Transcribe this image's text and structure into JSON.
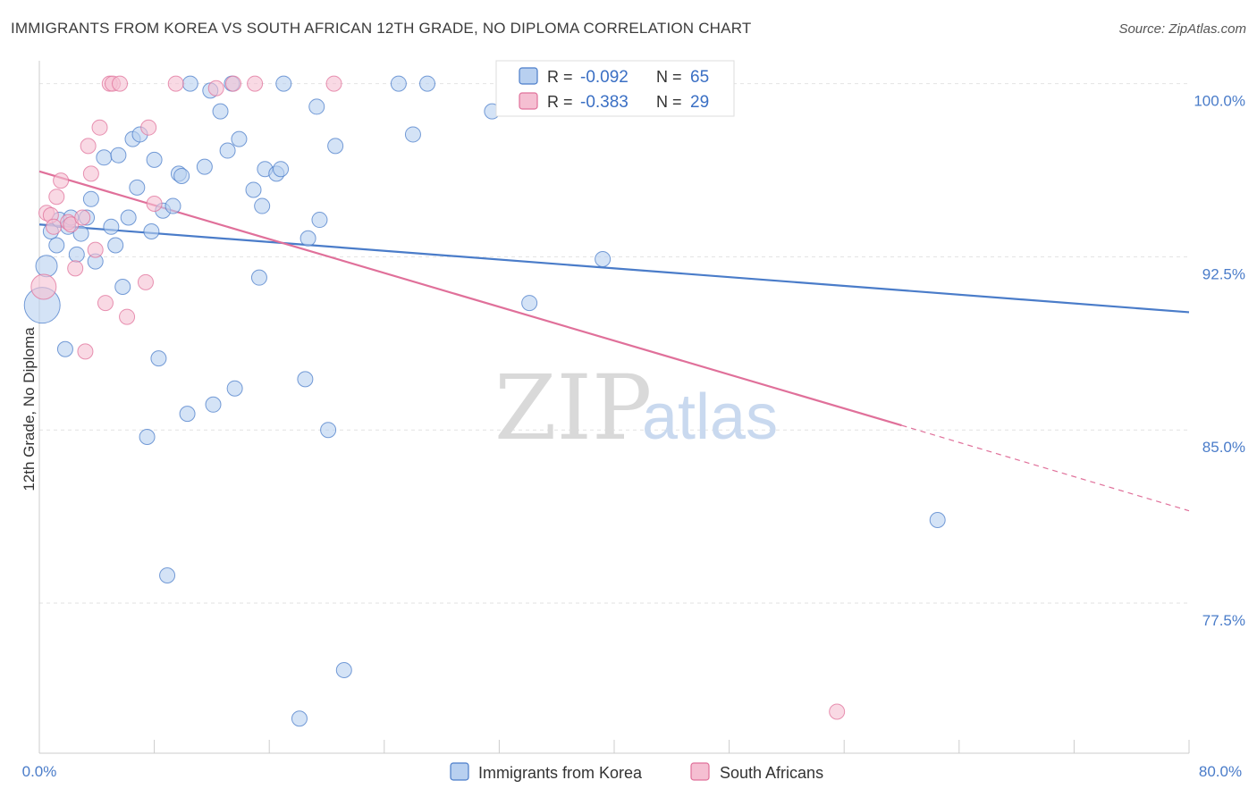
{
  "title": "IMMIGRANTS FROM KOREA VS SOUTH AFRICAN 12TH GRADE, NO DIPLOMA CORRELATION CHART",
  "source": "Source: ZipAtlas.com",
  "colors": {
    "blue": "#4a7cc9",
    "blue_fill": "#b8d0f0",
    "pink": "#e0709a",
    "pink_fill": "#f5bfd2"
  },
  "watermark": {
    "zip": "ZIP",
    "atlas": "atlas"
  },
  "legend": {
    "r_label": "R =",
    "n_label": "N =",
    "rows": [
      {
        "r": "-0.092",
        "n": "65"
      },
      {
        "r": "-0.383",
        "n": "29"
      }
    ]
  },
  "chart_data": {
    "type": "scatter",
    "title": "IMMIGRANTS FROM KOREA VS SOUTH AFRICAN 12TH GRADE, NO DIPLOMA CORRELATION CHART",
    "xlabel": "",
    "ylabel": "12th Grade, No Diploma",
    "xlim": [
      0,
      80
    ],
    "ylim": [
      71.0,
      101.3
    ],
    "x_tick_labels": [
      "0.0%",
      "80.0%"
    ],
    "y_ticks": [
      77.5,
      85.0,
      92.5,
      100.0
    ],
    "y_tick_labels": [
      "77.5%",
      "85.0%",
      "92.5%",
      "100.0%"
    ],
    "grid": true,
    "legend_position": "top-center",
    "series": [
      {
        "name": "Immigrants from Korea",
        "color": "#4a7cc9",
        "trend": {
          "x": [
            0,
            80
          ],
          "y": [
            93.9,
            90.1
          ]
        },
        "points": [
          [
            0.2,
            90.4
          ],
          [
            0.5,
            92.1
          ],
          [
            0.8,
            93.6
          ],
          [
            1.2,
            93.0
          ],
          [
            1.4,
            94.1
          ],
          [
            1.8,
            88.5
          ],
          [
            2.0,
            93.8
          ],
          [
            2.2,
            94.2
          ],
          [
            2.6,
            92.6
          ],
          [
            2.9,
            93.5
          ],
          [
            3.3,
            94.2
          ],
          [
            3.6,
            95.0
          ],
          [
            3.9,
            92.3
          ],
          [
            4.5,
            96.8
          ],
          [
            5.0,
            93.8
          ],
          [
            5.3,
            93.0
          ],
          [
            5.5,
            96.9
          ],
          [
            5.8,
            91.2
          ],
          [
            6.2,
            94.2
          ],
          [
            6.5,
            97.6
          ],
          [
            6.8,
            95.5
          ],
          [
            7.0,
            97.8
          ],
          [
            7.5,
            84.7
          ],
          [
            7.8,
            93.6
          ],
          [
            8.0,
            96.7
          ],
          [
            8.3,
            88.1
          ],
          [
            8.6,
            94.5
          ],
          [
            8.9,
            78.7
          ],
          [
            9.3,
            94.7
          ],
          [
            9.7,
            96.1
          ],
          [
            9.9,
            96.0
          ],
          [
            10.3,
            85.7
          ],
          [
            10.5,
            100.0
          ],
          [
            11.5,
            96.4
          ],
          [
            11.9,
            99.7
          ],
          [
            12.1,
            86.1
          ],
          [
            12.6,
            98.8
          ],
          [
            13.1,
            97.1
          ],
          [
            13.4,
            100.0
          ],
          [
            13.6,
            86.8
          ],
          [
            13.9,
            97.6
          ],
          [
            14.9,
            95.4
          ],
          [
            15.3,
            91.6
          ],
          [
            15.5,
            94.7
          ],
          [
            15.7,
            96.3
          ],
          [
            16.5,
            96.1
          ],
          [
            16.8,
            96.3
          ],
          [
            17.0,
            100.0
          ],
          [
            18.1,
            72.5
          ],
          [
            18.5,
            87.2
          ],
          [
            18.7,
            93.3
          ],
          [
            19.3,
            99.0
          ],
          [
            19.5,
            94.1
          ],
          [
            20.1,
            85.0
          ],
          [
            20.6,
            97.3
          ],
          [
            21.2,
            74.6
          ],
          [
            25.0,
            100.0
          ],
          [
            26.0,
            97.8
          ],
          [
            27.0,
            100.0
          ],
          [
            31.5,
            98.8
          ],
          [
            33.8,
            100.0
          ],
          [
            34.1,
            90.5
          ],
          [
            39.0,
            100.0
          ],
          [
            39.2,
            92.4
          ],
          [
            62.5,
            81.1
          ]
        ]
      },
      {
        "name": "South Africans",
        "color": "#e0709a",
        "trend": {
          "x": [
            0,
            60
          ],
          "y": [
            96.2,
            85.2
          ]
        },
        "trend_dashed": {
          "x": [
            60,
            80
          ],
          "y": [
            85.2,
            81.5
          ]
        },
        "points": [
          [
            0.3,
            91.2
          ],
          [
            0.5,
            94.4
          ],
          [
            0.8,
            94.3
          ],
          [
            1.0,
            93.8
          ],
          [
            1.2,
            95.1
          ],
          [
            1.5,
            95.8
          ],
          [
            2.0,
            94.0
          ],
          [
            2.2,
            93.9
          ],
          [
            2.5,
            92.0
          ],
          [
            3.0,
            94.2
          ],
          [
            3.2,
            88.4
          ],
          [
            3.4,
            97.3
          ],
          [
            3.6,
            96.1
          ],
          [
            3.9,
            92.8
          ],
          [
            4.2,
            98.1
          ],
          [
            4.6,
            90.5
          ],
          [
            4.9,
            100.0
          ],
          [
            5.1,
            100.0
          ],
          [
            5.6,
            100.0
          ],
          [
            6.1,
            89.9
          ],
          [
            7.4,
            91.4
          ],
          [
            7.6,
            98.1
          ],
          [
            8.0,
            94.8
          ],
          [
            9.5,
            100.0
          ],
          [
            12.3,
            99.8
          ],
          [
            13.5,
            100.0
          ],
          [
            15.0,
            100.0
          ],
          [
            20.5,
            100.0
          ],
          [
            55.5,
            72.8
          ]
        ]
      }
    ]
  }
}
